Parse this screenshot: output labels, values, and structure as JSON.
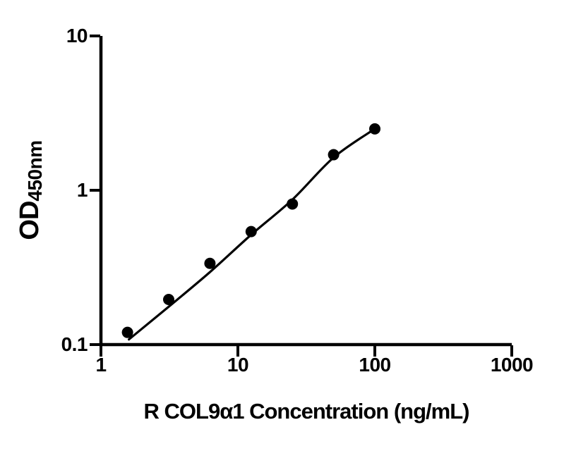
{
  "figure": {
    "background_color": "#ffffff",
    "ink_color": "#000000"
  },
  "chart_data": {
    "type": "scatter",
    "subtype": "elisa-standard-curve-with-fit-line",
    "title": "",
    "xlabel": "R COL9α1 Concentration (ng/mL)",
    "ylabel_main": "OD",
    "ylabel_subscript": "450nm",
    "x_scale": "log10",
    "y_scale": "log10",
    "xlim": [
      1,
      1000
    ],
    "ylim": [
      0.1,
      10
    ],
    "grid": false,
    "legend": false,
    "x_ticks": [
      {
        "value": 1,
        "label": "1"
      },
      {
        "value": 10,
        "label": "10"
      },
      {
        "value": 100,
        "label": "100"
      },
      {
        "value": 1000,
        "label": "1000"
      }
    ],
    "y_ticks": [
      {
        "value": 10,
        "label": "10"
      },
      {
        "value": 1,
        "label": "1"
      },
      {
        "value": 0.1,
        "label": "0.1"
      }
    ],
    "series": [
      {
        "name": "standard-points",
        "kind": "scatter",
        "marker": "filled-circle",
        "color": "#000000",
        "points": [
          {
            "x": 1.5625,
            "y": 0.12
          },
          {
            "x": 3.125,
            "y": 0.196
          },
          {
            "x": 6.25,
            "y": 0.336
          },
          {
            "x": 12.5,
            "y": 0.54
          },
          {
            "x": 25,
            "y": 0.815
          },
          {
            "x": 50,
            "y": 1.7
          },
          {
            "x": 100,
            "y": 2.5
          }
        ]
      },
      {
        "name": "fit-curve",
        "kind": "smooth-line",
        "color": "#000000",
        "anchors": [
          {
            "x": 1.6,
            "y": 0.108
          },
          {
            "x": 3.125,
            "y": 0.176
          },
          {
            "x": 6.25,
            "y": 0.295
          },
          {
            "x": 12.5,
            "y": 0.515
          },
          {
            "x": 25,
            "y": 0.87
          },
          {
            "x": 50,
            "y": 1.63
          },
          {
            "x": 100,
            "y": 2.5
          }
        ]
      }
    ]
  }
}
